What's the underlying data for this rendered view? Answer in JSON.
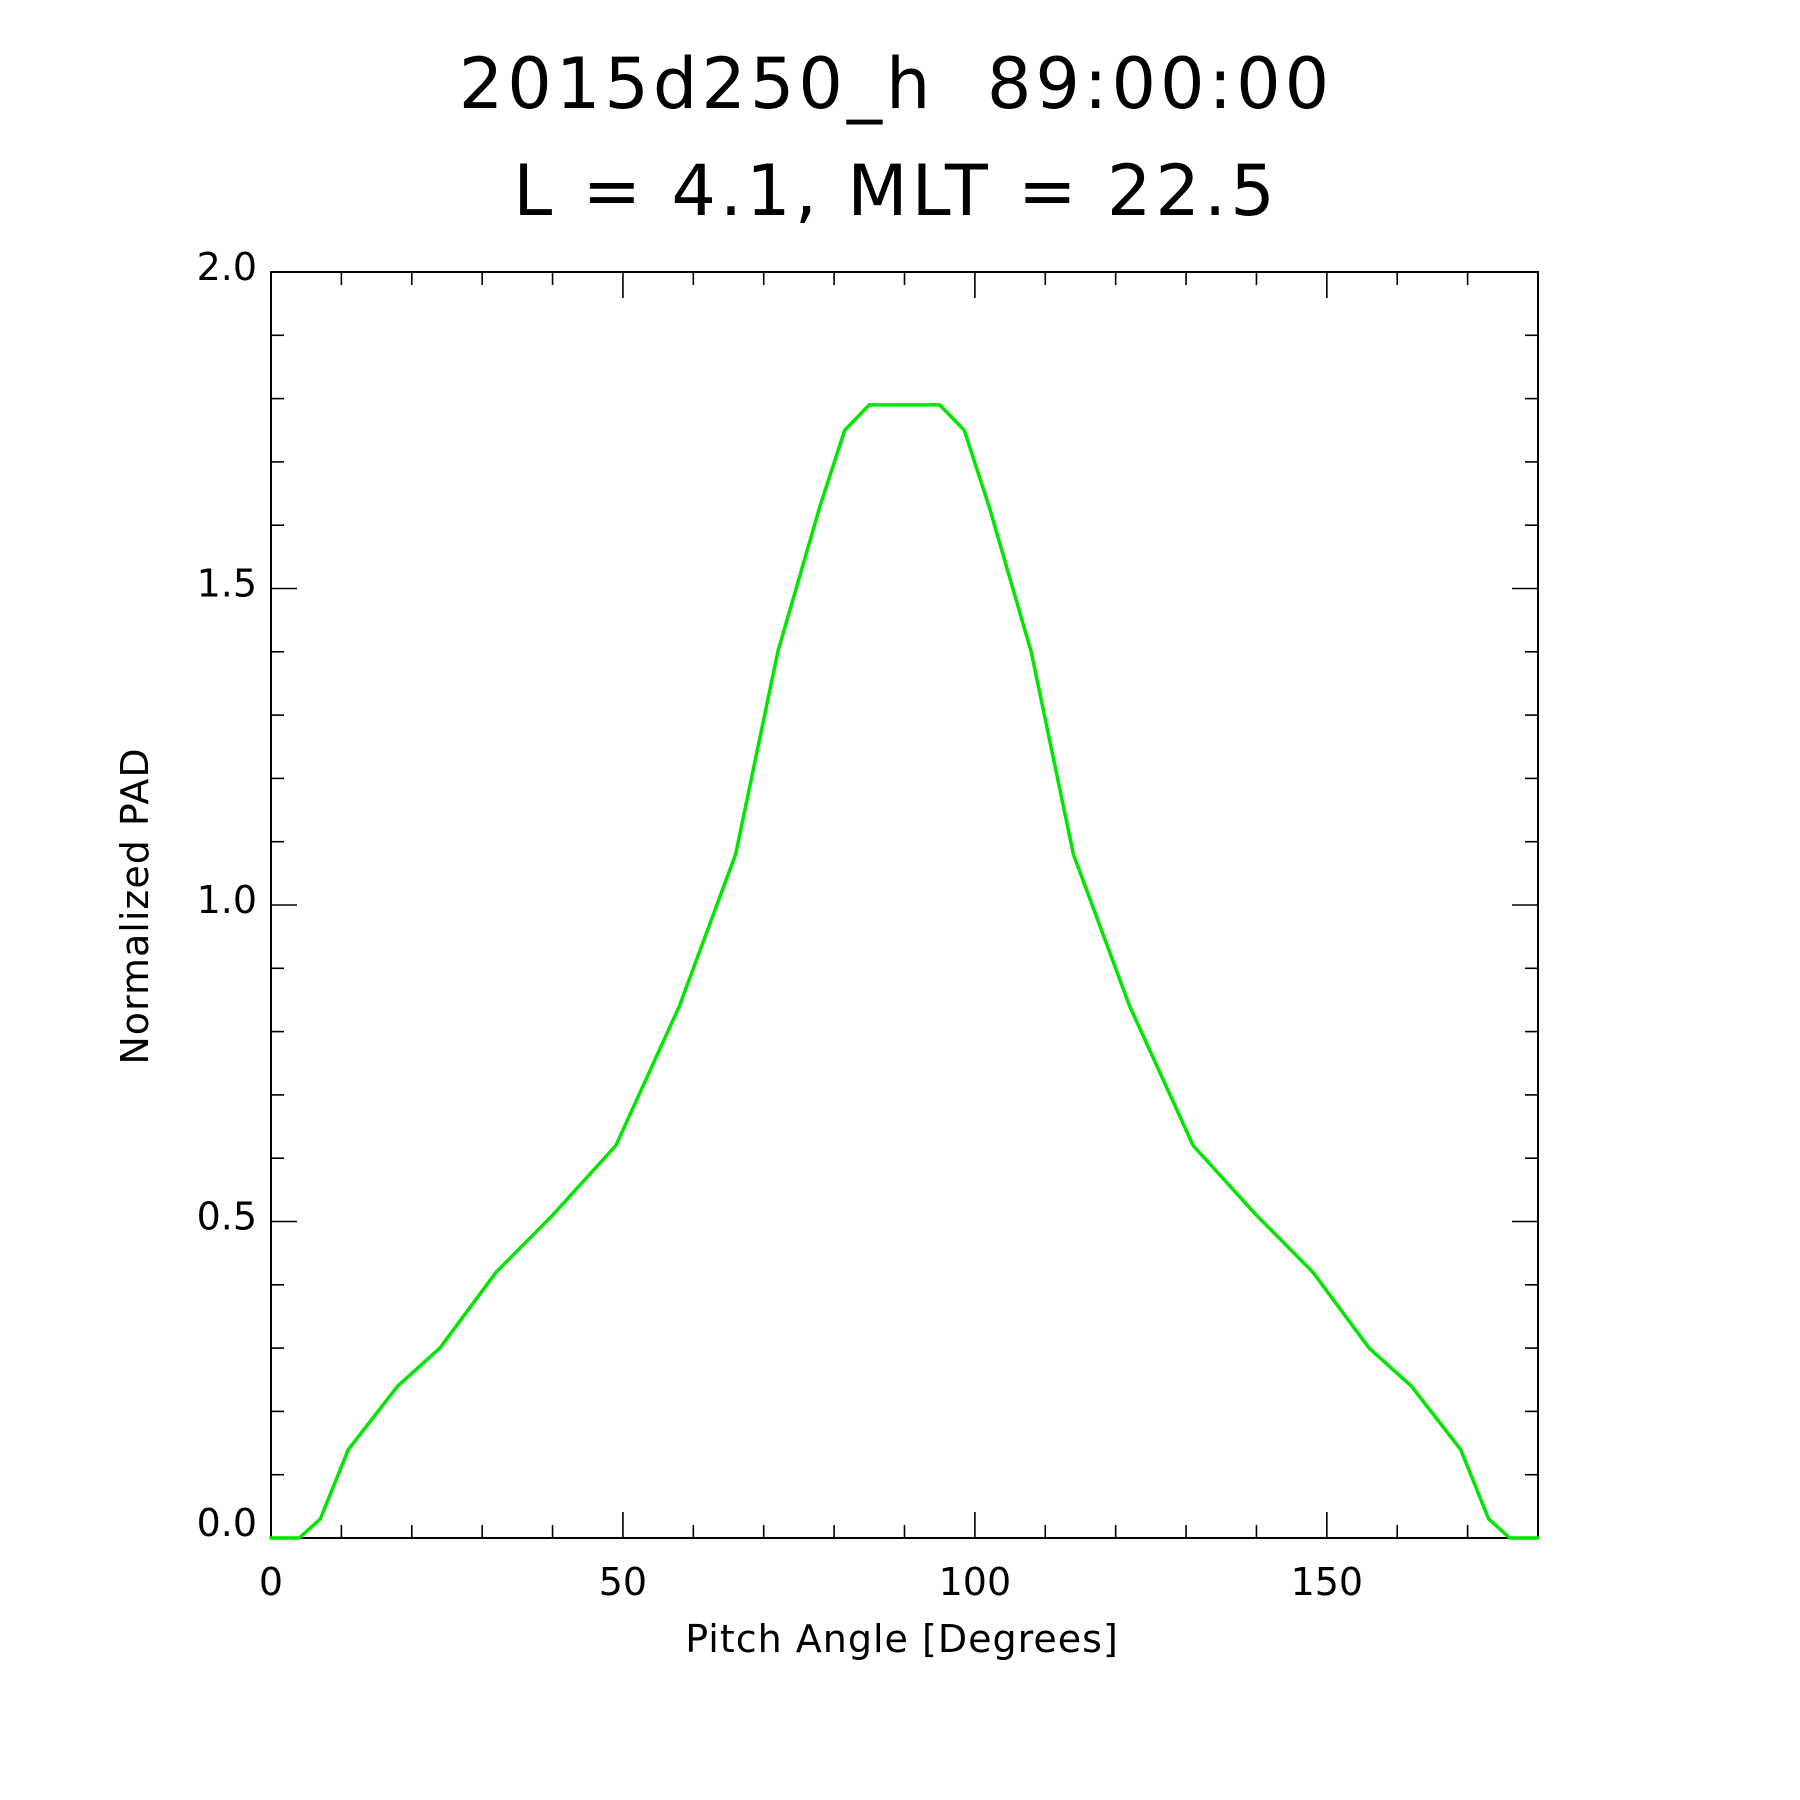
{
  "chart_data": {
    "type": "line",
    "title": "2015d250_h  89:00:00",
    "subtitle": "L = 4.1, MLT = 22.5",
    "xlabel": "Pitch Angle [Degrees]",
    "ylabel": "Normalized PAD",
    "xlim": [
      0,
      180
    ],
    "ylim": [
      0,
      2.0
    ],
    "x_major_ticks": [
      0,
      50,
      100,
      150
    ],
    "x_tick_labels": [
      "0",
      "50",
      "100",
      "150"
    ],
    "y_major_ticks": [
      0.0,
      0.5,
      1.0,
      1.5,
      2.0
    ],
    "y_tick_labels": [
      "0.0",
      "0.5",
      "1.0",
      "1.5",
      "2.0"
    ],
    "x_minor_step": 10,
    "y_minor_step": 0.1,
    "grid": false,
    "series": [
      {
        "color": "#00e600",
        "x": [
          0,
          4,
          7,
          11,
          18,
          24,
          32,
          40,
          49,
          58,
          66,
          72,
          78,
          81.5,
          85,
          88,
          92,
          95,
          98.5,
          102,
          108,
          114,
          122,
          131,
          140,
          148,
          156,
          162,
          169,
          173,
          176,
          180
        ],
        "y": [
          0.0,
          0.0,
          0.03,
          0.14,
          0.24,
          0.3,
          0.42,
          0.51,
          0.62,
          0.84,
          1.08,
          1.4,
          1.63,
          1.75,
          1.79,
          1.79,
          1.79,
          1.79,
          1.75,
          1.63,
          1.4,
          1.08,
          0.84,
          0.62,
          0.51,
          0.42,
          0.3,
          0.24,
          0.14,
          0.03,
          0.0,
          0.0
        ]
      }
    ]
  }
}
